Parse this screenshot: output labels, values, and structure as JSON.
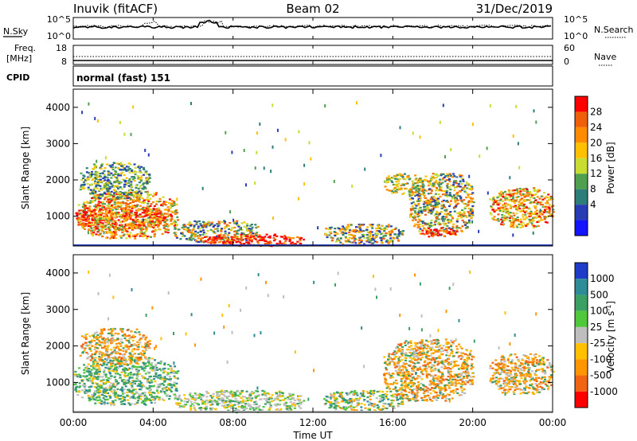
{
  "header": {
    "station": "Inuvik (fitACF)",
    "beam": "Beam 02",
    "date": "31/Dec/2019"
  },
  "panels": {
    "nsky": {
      "left_label": "N.Sky",
      "right_label": "N.Search",
      "left_ticks": [
        "10^5",
        "10^0"
      ],
      "right_ticks": [
        "10^5",
        "10^0"
      ]
    },
    "freq": {
      "left_label_1": "Freq.",
      "left_label_2": "[MHz]",
      "right_label": "Nave",
      "left_ticks": [
        "18",
        "8"
      ],
      "right_ticks": [
        "60",
        "0"
      ]
    },
    "cpid": {
      "label": "CPID",
      "value": "normal (fast) 151"
    }
  },
  "colorbars": {
    "power": {
      "label": "Power [dB]",
      "ticks": [
        "28",
        "24",
        "20",
        "16",
        "12",
        "8",
        "4"
      ],
      "colors": [
        "#ff0000",
        "#f0600a",
        "#ff8c00",
        "#ffc000",
        "#c8dc32",
        "#50a050",
        "#2d7d78",
        "#283cb4",
        "#1414ff"
      ]
    },
    "velocity": {
      "label": "Velocity [m s",
      "label_sup": "-1",
      "label_end": "]",
      "ticks": [
        "1000",
        "500",
        "100",
        "25",
        "-25",
        "-100",
        "-500",
        "-1000"
      ],
      "colors": [
        "#1e3cc8",
        "#2d8c96",
        "#3ca064",
        "#50c83c",
        "#bebebe",
        "#ffc000",
        "#ff9600",
        "#f06414",
        "#ff0000"
      ]
    }
  },
  "chart_data": [
    {
      "type": "heatmap",
      "name": "power",
      "ylabel": "Slant Range [km]",
      "xlabel": "Time UT",
      "x_ticks": [
        "00:00",
        "04:00",
        "08:00",
        "12:00",
        "16:00",
        "20:00",
        "00:00"
      ],
      "xlim_hours": [
        0,
        24
      ],
      "y_ticks": [
        1000,
        2000,
        3000,
        4000
      ],
      "ylim_km": [
        180,
        4500
      ],
      "blobs": [
        {
          "t0": 0.0,
          "t1": 4.6,
          "r0": 650,
          "r1": 1300,
          "cls": "high"
        },
        {
          "t0": 0.2,
          "t1": 5.2,
          "r0": 400,
          "r1": 1700,
          "cls": "mid"
        },
        {
          "t0": 5.0,
          "t1": 9.2,
          "r0": 300,
          "r1": 900,
          "cls": "mix"
        },
        {
          "t0": 6.3,
          "t1": 11.5,
          "r0": 200,
          "r1": 520,
          "cls": "high"
        },
        {
          "t0": 0.3,
          "t1": 3.8,
          "r0": 1500,
          "r1": 2500,
          "cls": "low"
        },
        {
          "t0": 12.5,
          "t1": 16.5,
          "r0": 250,
          "r1": 800,
          "cls": "mix"
        },
        {
          "t0": 15.5,
          "t1": 17.5,
          "r0": 1600,
          "r1": 2200,
          "cls": "midlow"
        },
        {
          "t0": 16.8,
          "t1": 20.0,
          "r0": 500,
          "r1": 2200,
          "cls": "mix"
        },
        {
          "t0": 17.3,
          "t1": 19.2,
          "r0": 450,
          "r1": 700,
          "cls": "high"
        },
        {
          "t0": 20.8,
          "t1": 24.0,
          "r0": 700,
          "r1": 1800,
          "cls": "mid"
        }
      ]
    },
    {
      "type": "heatmap",
      "name": "velocity",
      "ylabel": "Slant Range [km]",
      "xlabel": "Time UT",
      "x_ticks": [
        "00:00",
        "04:00",
        "08:00",
        "12:00",
        "16:00",
        "20:00",
        "00:00"
      ],
      "xlim_hours": [
        0,
        24
      ],
      "y_ticks": [
        1000,
        2000,
        3000,
        4000
      ],
      "ylim_km": [
        180,
        4500
      ],
      "blobs": [
        {
          "t0": 0.0,
          "t1": 5.2,
          "r0": 400,
          "r1": 1700,
          "cls": "vgreen"
        },
        {
          "t0": 0.3,
          "t1": 3.8,
          "r0": 1500,
          "r1": 2500,
          "cls": "vorange"
        },
        {
          "t0": 5.0,
          "t1": 11.5,
          "r0": 200,
          "r1": 800,
          "cls": "vgray"
        },
        {
          "t0": 12.5,
          "t1": 16.5,
          "r0": 250,
          "r1": 800,
          "cls": "vmix"
        },
        {
          "t0": 15.5,
          "t1": 20.0,
          "r0": 500,
          "r1": 2200,
          "cls": "vorange"
        },
        {
          "t0": 20.8,
          "t1": 24.0,
          "r0": 700,
          "r1": 1800,
          "cls": "vorange"
        }
      ]
    }
  ]
}
